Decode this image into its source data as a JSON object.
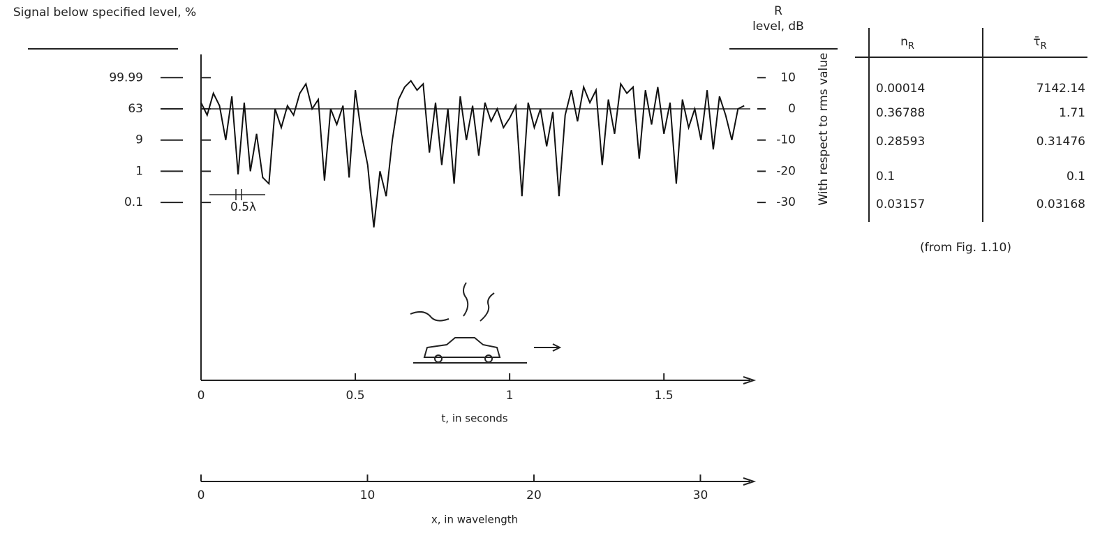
{
  "chart_data": {
    "type": "line",
    "y_label": "Signal below specified level, %",
    "y2_label_top": "R",
    "y2_label": "level, dB",
    "y2_note": "With respect to rms value",
    "x_label": "t, in seconds",
    "x2_label": "x, in wavelength",
    "annotation": "0.5λ",
    "xlim": [
      0,
      1.78
    ],
    "xticks": [
      0,
      0.5,
      1,
      1.5
    ],
    "x2lim": [
      0,
      33
    ],
    "x2ticks": [
      0,
      10,
      20,
      30
    ],
    "ylim": [
      -87,
      17
    ],
    "yticks": [
      10,
      0,
      -10,
      -20,
      -30
    ],
    "y_left_ticks": [
      {
        "value": 10,
        "label": "99.99"
      },
      {
        "value": 0,
        "label": "63"
      },
      {
        "value": -10,
        "label": "9"
      },
      {
        "value": -20,
        "label": "1"
      },
      {
        "value": -30,
        "label": "0.1"
      }
    ],
    "reference_level": 0,
    "series": [
      {
        "color": "#111111",
        "x": [
          0,
          0.02,
          0.04,
          0.06,
          0.08,
          0.1,
          0.12,
          0.14,
          0.16,
          0.18,
          0.2,
          0.22,
          0.24,
          0.26,
          0.28,
          0.3,
          0.32,
          0.34,
          0.36,
          0.38,
          0.4,
          0.42,
          0.44,
          0.46,
          0.48,
          0.5,
          0.52,
          0.54,
          0.56,
          0.58,
          0.6,
          0.62,
          0.64,
          0.66,
          0.68,
          0.7,
          0.72,
          0.74,
          0.76,
          0.78,
          0.8,
          0.82,
          0.84,
          0.86,
          0.88,
          0.9,
          0.92,
          0.94,
          0.96,
          0.98,
          1,
          1.02,
          1.04,
          1.06,
          1.08,
          1.1,
          1.12,
          1.14,
          1.16,
          1.18,
          1.2,
          1.22,
          1.24,
          1.26,
          1.28,
          1.3,
          1.32,
          1.34,
          1.36,
          1.38,
          1.4,
          1.42,
          1.44,
          1.46,
          1.48,
          1.5,
          1.52,
          1.54,
          1.56,
          1.58,
          1.6,
          1.62,
          1.64,
          1.66,
          1.68,
          1.7,
          1.72,
          1.74,
          1.76
        ],
        "values": [
          2,
          -2,
          5,
          1,
          -10,
          4,
          -21,
          2,
          -20,
          -8,
          -22,
          -24,
          0,
          -6,
          1,
          -2,
          5,
          8,
          0,
          3,
          -23,
          0,
          -5,
          1,
          -22,
          6,
          -8,
          -18,
          -38,
          -20,
          -28,
          -10,
          3,
          7,
          9,
          6,
          8,
          -14,
          2,
          -18,
          0,
          -24,
          4,
          -10,
          1,
          -15,
          2,
          -4,
          0,
          -6,
          -3,
          1,
          -28,
          2,
          -6,
          0,
          -12,
          -1,
          -28,
          -2,
          6,
          -4,
          7,
          2,
          6,
          -18,
          3,
          -8,
          8,
          5,
          7,
          -16,
          6,
          -5,
          7,
          -8,
          2,
          -24,
          3,
          -6,
          0,
          -10,
          6,
          -13,
          4,
          -2,
          -10,
          0,
          1
        ]
      }
    ]
  },
  "table": {
    "headers": [
      {
        "symbol": "n",
        "sub": "R"
      },
      {
        "symbol": "τ̄",
        "sub": "R"
      }
    ],
    "rows": [
      [
        "0.00014",
        "7142.14"
      ],
      [
        "0.36788",
        "1.71"
      ],
      [
        "0.28593",
        "0.31476"
      ],
      [
        "0.1",
        "0.1"
      ],
      [
        "0.03157",
        "0.03168"
      ]
    ],
    "note": "(from Fig. 1.10)"
  }
}
